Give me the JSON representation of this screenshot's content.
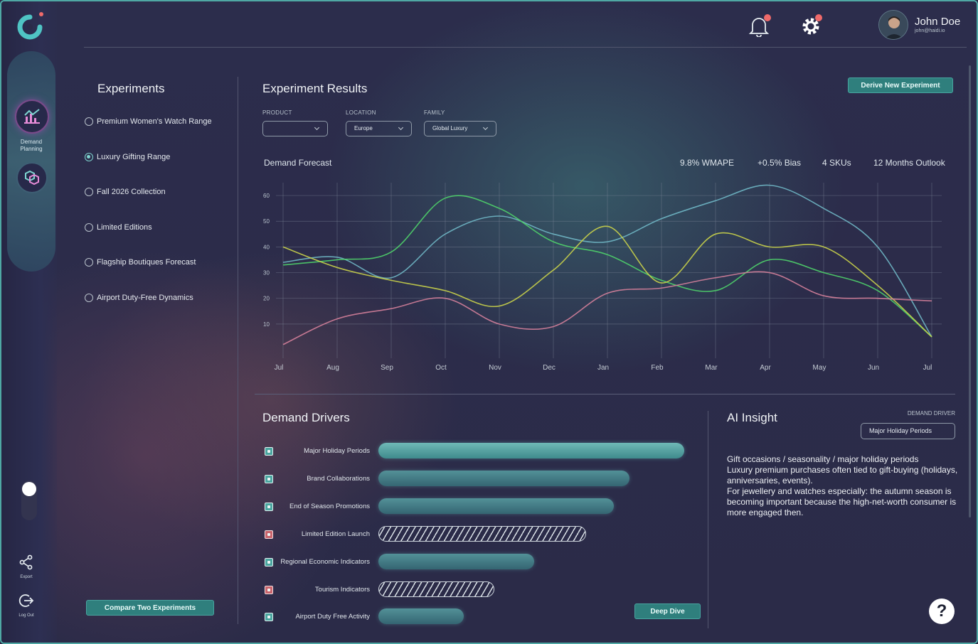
{
  "user": {
    "name": "John Doe",
    "email": "john@haidi.io"
  },
  "nav": {
    "demand_planning": "Demand\nPlanning",
    "export": "Export",
    "logout": "Log Out"
  },
  "experiments": {
    "title": "Experiments",
    "items": [
      {
        "label": "Premium Women's Watch Range",
        "selected": false
      },
      {
        "label": "Luxury Gifting Range",
        "selected": true
      },
      {
        "label": "Fall 2026 Collection",
        "selected": false
      },
      {
        "label": "Limited Editions",
        "selected": false
      },
      {
        "label": "Flagship Boutiques Forecast",
        "selected": false
      },
      {
        "label": "Airport Duty-Free Dynamics",
        "selected": false
      }
    ],
    "compare_button": "Compare Two Experiments"
  },
  "results": {
    "title": "Experiment Results",
    "derive_button": "Derive New Experiment",
    "filters": {
      "product_label": "PRODUCT",
      "product_value": "",
      "location_label": "LOCATION",
      "location_value": "Europe",
      "family_label": "FAMILY",
      "family_value": "Global Luxury"
    },
    "forecast_title": "Demand Forecast",
    "metrics": {
      "wmape": "9.8% WMAPE",
      "bias": "+0.5% Bias",
      "skus": "4 SKUs",
      "outlook": "12 Months Outlook"
    }
  },
  "chart_data": {
    "type": "line",
    "title": "Demand Forecast",
    "categories": [
      "Jul",
      "Aug",
      "Sep",
      "Oct",
      "Nov",
      "Dec",
      "Jan",
      "Feb",
      "Mar",
      "Apr",
      "May",
      "Jun",
      "Jul"
    ],
    "ylim": [
      0,
      65
    ],
    "yticks": [
      10,
      20,
      30,
      40,
      50,
      60
    ],
    "grid": true,
    "series": [
      {
        "color": "#6fb6c4",
        "values": [
          34,
          36,
          28,
          45,
          52,
          45,
          42,
          51,
          58,
          64,
          55,
          40,
          5
        ]
      },
      {
        "color": "#4fd26a",
        "values": [
          33,
          35,
          38,
          59,
          55,
          42,
          37,
          27,
          23,
          35,
          30,
          23,
          5
        ]
      },
      {
        "color": "#c9d24a",
        "values": [
          40,
          32,
          27,
          23,
          17,
          31,
          48,
          26,
          45,
          40,
          40,
          25,
          5
        ]
      },
      {
        "color": "#d4809a",
        "values": [
          2,
          12,
          16,
          20,
          10,
          9,
          22,
          24,
          28,
          30,
          21,
          20,
          19
        ]
      }
    ]
  },
  "drivers": {
    "title": "Demand Drivers",
    "items": [
      {
        "label": "Major Holiday Periods",
        "checked": true,
        "value": 1.0,
        "style": "solid"
      },
      {
        "label": "Brand Collaborations",
        "checked": true,
        "value": 0.82,
        "style": "solid"
      },
      {
        "label": "End of Season Promotions",
        "checked": true,
        "value": 0.77,
        "style": "solid"
      },
      {
        "label": "Limited Edition Launch",
        "checked": false,
        "value": 0.68,
        "style": "hatched"
      },
      {
        "label": "Regional Economic Indicators",
        "checked": true,
        "value": 0.51,
        "style": "solid"
      },
      {
        "label": "Tourism Indicators",
        "checked": false,
        "value": 0.38,
        "style": "hatched"
      },
      {
        "label": "Airport Duty Free Activity",
        "checked": true,
        "value": 0.28,
        "style": "solid"
      }
    ],
    "deep_dive_button": "Deep Dive"
  },
  "insight": {
    "title": "AI Insight",
    "driver_label": "DEMAND DRIVER",
    "driver_value": "Major Holiday Periods",
    "text": "Gift occasions / seasonality / major holiday periods\nLuxury premium purchases often tied to gift-buying (holidays, anniversaries, events).\nFor jewellery and watches especially: the autumn season is becoming important because the high-net-worth consumer is more engaged then."
  },
  "help": "?"
}
